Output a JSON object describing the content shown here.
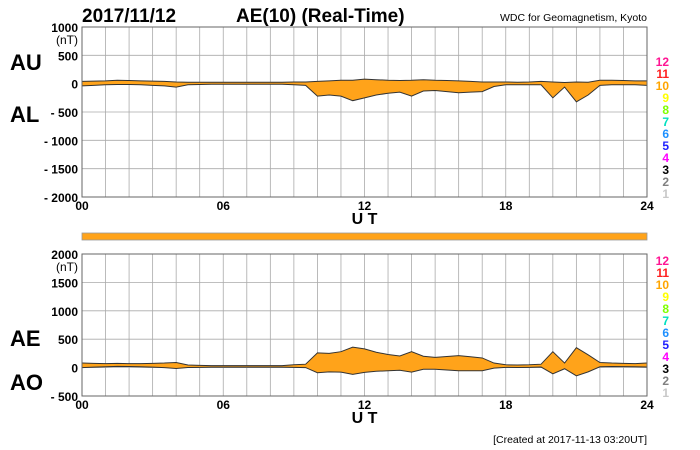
{
  "header": {
    "date": "2017/11/12",
    "title": "AE(10) (Real-Time)",
    "source": "WDC for Geomagnetism, Kyoto"
  },
  "footer": {
    "created": "[Created at 2017-11-13 03:20UT]"
  },
  "station_counts": {
    "labels": [
      "12",
      "11",
      "10",
      "9",
      "8",
      "7",
      "6",
      "5",
      "4",
      "3",
      "2",
      "1"
    ],
    "colors": [
      "#ff1493",
      "#ff2020",
      "#ffa500",
      "#ffff00",
      "#80ff00",
      "#00e0c0",
      "#1e90ff",
      "#2020ff",
      "#ff00ff",
      "#000000",
      "#808080",
      "#c8c8c8"
    ]
  },
  "colors": {
    "fill": "#ffa31a",
    "outline": "#333333",
    "grid": "#aaaaaa",
    "strip": "#ffa31a"
  },
  "chart_data": [
    {
      "type": "area",
      "name": "AU/AL",
      "ylabel_top": "AU",
      "ylabel_bottom": "AL",
      "unit": "(nT)",
      "xlabel": "U T",
      "xlim": [
        0,
        24
      ],
      "ylim": [
        -2000,
        1000
      ],
      "yticks": [
        1000,
        500,
        0,
        -500,
        -1000,
        -1500,
        -2000
      ],
      "ytick_labels": [
        "1000",
        "500",
        "0",
        "- 500",
        "- 1000",
        "- 1500",
        "- 2000"
      ],
      "xticks": [
        0,
        6,
        12,
        18,
        24
      ],
      "xtick_labels": [
        "00",
        "06",
        "12",
        "18",
        "24"
      ],
      "grid": true,
      "x": [
        0,
        0.5,
        1,
        1.5,
        2,
        2.5,
        3,
        3.5,
        4,
        4.5,
        5,
        5.5,
        6,
        6.5,
        7,
        7.5,
        8,
        8.5,
        9,
        9.5,
        10,
        10.5,
        11,
        11.5,
        12,
        12.5,
        13,
        13.5,
        14,
        14.5,
        15,
        15.5,
        16,
        16.5,
        17,
        17.5,
        18,
        18.5,
        19,
        19.5,
        20,
        20.5,
        21,
        21.5,
        22,
        22.5,
        23,
        23.5,
        24
      ],
      "series": [
        {
          "name": "AU",
          "values": [
            40,
            45,
            50,
            60,
            55,
            50,
            45,
            40,
            30,
            25,
            25,
            25,
            25,
            25,
            25,
            25,
            25,
            25,
            30,
            30,
            40,
            50,
            60,
            60,
            80,
            70,
            60,
            55,
            60,
            70,
            60,
            55,
            50,
            40,
            30,
            30,
            30,
            25,
            30,
            40,
            30,
            20,
            30,
            25,
            60,
            60,
            55,
            50,
            50
          ]
        },
        {
          "name": "AL",
          "values": [
            -40,
            -30,
            -20,
            -15,
            -15,
            -20,
            -30,
            -40,
            -60,
            -20,
            -15,
            -10,
            -10,
            -10,
            -10,
            -10,
            -10,
            -10,
            -20,
            -30,
            -220,
            -200,
            -220,
            -300,
            -250,
            -200,
            -170,
            -150,
            -220,
            -130,
            -120,
            -140,
            -160,
            -150,
            -140,
            -50,
            -20,
            -20,
            -20,
            -20,
            -250,
            -60,
            -320,
            -200,
            -30,
            -20,
            -20,
            -20,
            -30
          ]
        }
      ]
    },
    {
      "type": "area",
      "name": "AE/AO",
      "ylabel_top": "AE",
      "ylabel_bottom": "AO",
      "unit": "(nT)",
      "xlabel": "U T",
      "xlim": [
        0,
        24
      ],
      "ylim": [
        -500,
        2000
      ],
      "yticks": [
        2000,
        1500,
        1000,
        500,
        0,
        -500
      ],
      "ytick_labels": [
        "2000",
        "1500",
        "1000",
        "500",
        "0",
        "- 500"
      ],
      "xticks": [
        0,
        6,
        12,
        18,
        24
      ],
      "xtick_labels": [
        "00",
        "06",
        "12",
        "18",
        "24"
      ],
      "grid": true,
      "x": [
        0,
        0.5,
        1,
        1.5,
        2,
        2.5,
        3,
        3.5,
        4,
        4.5,
        5,
        5.5,
        6,
        6.5,
        7,
        7.5,
        8,
        8.5,
        9,
        9.5,
        10,
        10.5,
        11,
        11.5,
        12,
        12.5,
        13,
        13.5,
        14,
        14.5,
        15,
        15.5,
        16,
        16.5,
        17,
        17.5,
        18,
        18.5,
        19,
        19.5,
        20,
        20.5,
        21,
        21.5,
        22,
        22.5,
        23,
        23.5,
        24
      ],
      "series": [
        {
          "name": "AE",
          "values": [
            80,
            75,
            70,
            75,
            70,
            70,
            75,
            80,
            90,
            45,
            40,
            35,
            35,
            35,
            35,
            35,
            35,
            35,
            50,
            60,
            260,
            250,
            280,
            360,
            330,
            270,
            230,
            205,
            280,
            200,
            180,
            195,
            210,
            190,
            170,
            80,
            50,
            45,
            50,
            60,
            280,
            80,
            350,
            225,
            90,
            80,
            75,
            70,
            80
          ]
        },
        {
          "name": "AO",
          "values": [
            0,
            7.5,
            15,
            22.5,
            20,
            15,
            7.5,
            0,
            -15,
            2.5,
            5,
            7.5,
            7.5,
            7.5,
            7.5,
            7.5,
            7.5,
            7.5,
            5,
            0,
            -90,
            -75,
            -80,
            -120,
            -85,
            -65,
            -55,
            -47.5,
            -80,
            -30,
            -30,
            -42.5,
            -55,
            -55,
            -55,
            -10,
            5,
            2.5,
            5,
            10,
            -110,
            -20,
            -145,
            -75,
            15,
            20,
            17.5,
            15,
            10
          ]
        }
      ]
    }
  ]
}
